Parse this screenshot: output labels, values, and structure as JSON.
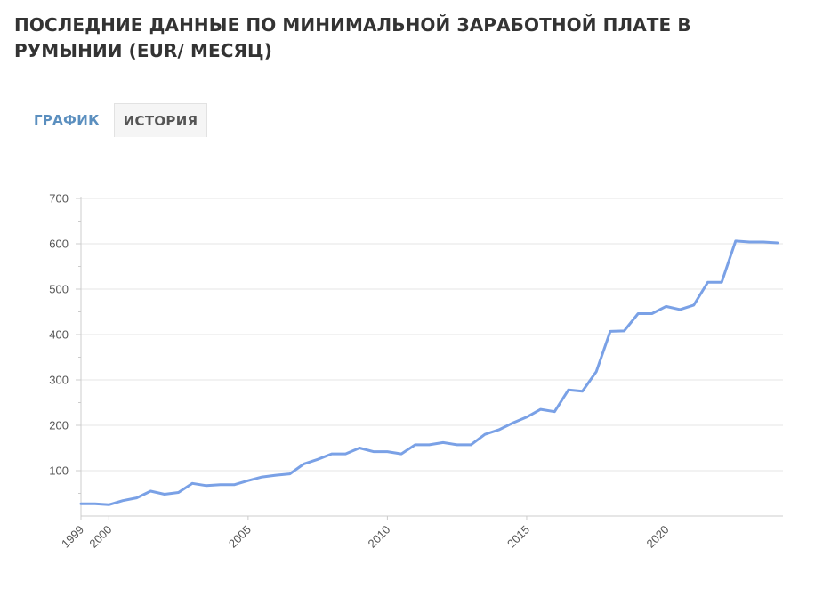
{
  "title": "ПОСЛЕДНИЕ ДАННЫЕ ПО МИНИМАЛЬНОЙ ЗАРАБОТНОЙ ПЛАТЕ В РУМЫНИИ (EUR/ МЕСЯЦ)",
  "tabs": [
    {
      "label": "ГРАФИК",
      "active": true
    },
    {
      "label": "ИСТОРИЯ",
      "active": false
    }
  ],
  "colors": {
    "line": "#7aa1e6",
    "grid": "#e6e6e6",
    "axis": "#cccccc",
    "tick_text": "#555555"
  },
  "chart_data": {
    "type": "line",
    "title": "",
    "xlabel": "",
    "ylabel": "",
    "xlim": [
      1999.0,
      2024.2
    ],
    "ylim": [
      0,
      700
    ],
    "y_ticks": [
      100,
      200,
      300,
      400,
      500,
      600,
      700
    ],
    "x_ticks": [
      {
        "value": 1999,
        "label": "1999"
      },
      {
        "value": 2000,
        "label": "2000"
      },
      {
        "value": 2005,
        "label": "2005"
      },
      {
        "value": 2010,
        "label": "2010"
      },
      {
        "value": 2015,
        "label": "2015"
      },
      {
        "value": 2020,
        "label": "2020"
      }
    ],
    "grid": true,
    "legend": "none",
    "series": [
      {
        "x": [
          1999.0,
          1999.5,
          2000.0,
          2000.5,
          2001.0,
          2001.5,
          2002.0,
          2002.5,
          2003.0,
          2003.5,
          2004.0,
          2004.5,
          2005.0,
          2005.5,
          2006.0,
          2006.5,
          2007.0,
          2007.5,
          2008.0,
          2008.5,
          2009.0,
          2009.5,
          2010.0,
          2010.5,
          2011.0,
          2011.5,
          2012.0,
          2012.5,
          2013.0,
          2013.5,
          2014.0,
          2014.5,
          2015.0,
          2015.5,
          2016.0,
          2016.5,
          2017.0,
          2017.5,
          2018.0,
          2018.5,
          2019.0,
          2019.5,
          2020.0,
          2020.5,
          2021.0,
          2021.5,
          2022.0,
          2022.5,
          2023.0,
          2023.5,
          2024.0
        ],
        "y": [
          27,
          27,
          25,
          34,
          40,
          55,
          48,
          52,
          72,
          67,
          69,
          69,
          78,
          86,
          90,
          93,
          115,
          125,
          137,
          137,
          150,
          142,
          142,
          137,
          157,
          157,
          162,
          157,
          157,
          180,
          190,
          205,
          218,
          235,
          230,
          278,
          275,
          318,
          407,
          408,
          446,
          446,
          462,
          455,
          465,
          515,
          515,
          606,
          604,
          604,
          602
        ]
      }
    ]
  }
}
